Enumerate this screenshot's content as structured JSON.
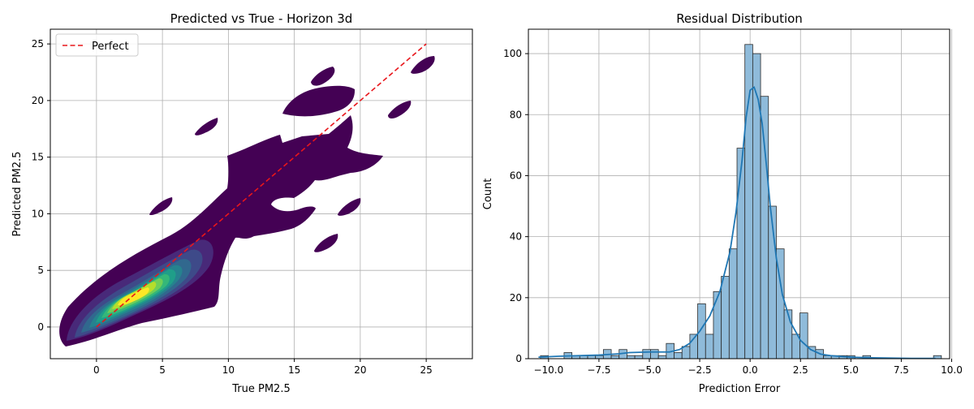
{
  "chart_data": [
    {
      "type": "kde_contour",
      "title": "Predicted vs True - Horizon 3d",
      "xlabel": "True PM2.5",
      "ylabel": "Predicted PM2.5",
      "xlim": [
        -3.5,
        28.5
      ],
      "ylim": [
        -2.8,
        26.3
      ],
      "xticks": [
        0,
        5,
        10,
        15,
        20,
        25
      ],
      "yticks": [
        0,
        5,
        10,
        15,
        20,
        25
      ],
      "grid": true,
      "colormap": "viridis",
      "colors": {
        "level1": "#440154",
        "level2": "#482979",
        "level3": "#3e4a89",
        "level4": "#31688e",
        "level5": "#26828e",
        "level6": "#1f9e89",
        "level7": "#35b779",
        "level8": "#6ece58",
        "level9": "#b5de2b",
        "level10": "#fde725",
        "perfect": "#e8161b"
      },
      "reference_line": {
        "label": "Perfect",
        "style": "dashed",
        "x": [
          0,
          25
        ],
        "y": [
          0,
          25
        ]
      },
      "legend": {
        "placement": "upper-left",
        "entries": [
          "Perfect"
        ]
      }
    },
    {
      "type": "histogram",
      "title": "Residual Distribution",
      "xlabel": "Prediction Error",
      "ylabel": "Count",
      "xlim": [
        -11.0,
        9.9
      ],
      "ylim": [
        0,
        108
      ],
      "xticks": [
        -10.0,
        -7.5,
        -5.0,
        -2.5,
        0.0,
        2.5,
        5.0,
        7.5,
        10.0
      ],
      "xtick_labels": [
        "−10.0",
        "−7.5",
        "−5.0",
        "−2.5",
        "0.0",
        "2.5",
        "5.0",
        "7.5",
        "10.0"
      ],
      "yticks": [
        0,
        20,
        40,
        60,
        80,
        100
      ],
      "grid": true,
      "bin_start": -10.4,
      "bin_width": 0.39,
      "counts": [
        1,
        0,
        0,
        2,
        1,
        1,
        1,
        1,
        3,
        1,
        3,
        1,
        1,
        3,
        3,
        1,
        5,
        2,
        4,
        8,
        18,
        8,
        22,
        27,
        36,
        69,
        103,
        100,
        86,
        50,
        36,
        16,
        8,
        15,
        4,
        3,
        1,
        1,
        1,
        1,
        0,
        1,
        0,
        0,
        0,
        0,
        0,
        0,
        0,
        0,
        1
      ],
      "bar_color": "#8fbbda",
      "kde_color": "#1f77b4",
      "kde": {
        "x": [
          -10.5,
          -9.5,
          -8.5,
          -7.5,
          -6.5,
          -6.0,
          -5.0,
          -4.0,
          -3.5,
          -3.0,
          -2.5,
          -2.0,
          -1.5,
          -1.0,
          -0.7,
          -0.4,
          -0.2,
          0.0,
          0.2,
          0.4,
          0.6,
          0.8,
          1.0,
          1.3,
          1.6,
          2.0,
          2.5,
          3.0,
          3.5,
          4.0,
          5.0,
          6.0,
          7.0,
          8.0,
          9.2
        ],
        "y": [
          0.5,
          0.8,
          1.0,
          1.2,
          1.6,
          2.0,
          2.2,
          2.2,
          3.0,
          5.0,
          9.0,
          14.0,
          22.0,
          35.0,
          48.0,
          65.0,
          79.0,
          88.0,
          89.0,
          85.0,
          77.0,
          64.0,
          50.0,
          33.0,
          21.0,
          12.0,
          6.0,
          3.0,
          1.5,
          1.0,
          0.5,
          0.3,
          0.2,
          0.1,
          0.1
        ]
      }
    }
  ]
}
